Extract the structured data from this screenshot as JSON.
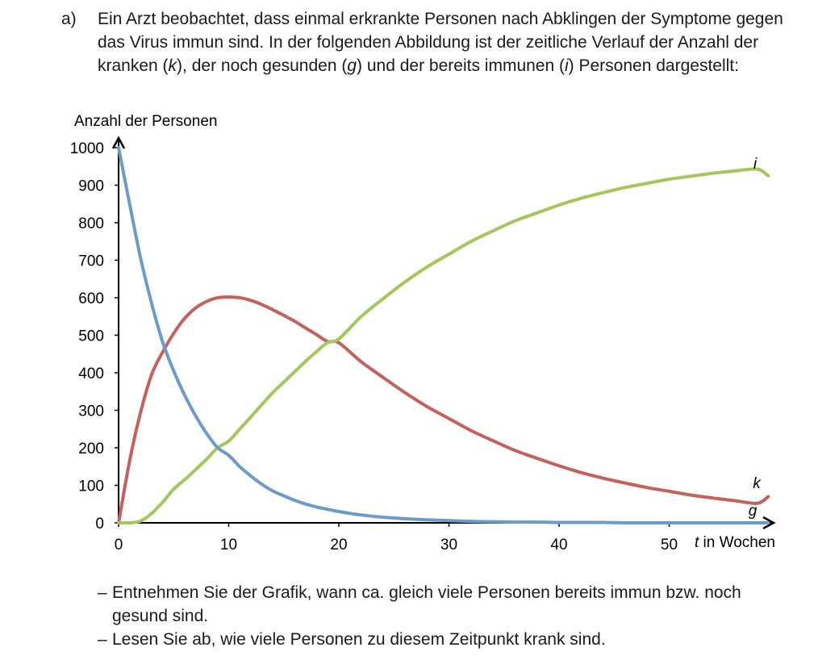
{
  "task": {
    "label": "a)",
    "intro_parts": [
      "Ein Arzt beobachtet, dass einmal erkrankte Personen nach Abklingen der Symptome gegen das Virus immun sind. In der folgenden Abbildung ist der zeitliche Verlauf der Anzahl der kranken (",
      "k",
      "), der noch gesunden (",
      "g",
      ") und der bereits immunen (",
      "i",
      ") Personen dargestellt:"
    ],
    "bullets": [
      "Entnehmen Sie der Grafik, wann ca. gleich viele Personen bereits immun bzw. noch gesund sind.",
      "Lesen Sie ab, wie viele Personen zu diesem Zeitpunkt krank sind."
    ]
  },
  "chart_data": {
    "type": "line",
    "title": "",
    "ylabel": "Anzahl der Personen",
    "xlabel_var": "t",
    "xlabel_rest": " in Wochen",
    "xlim": [
      0,
      60
    ],
    "ylim": [
      0,
      1000
    ],
    "xticks": [
      0,
      10,
      20,
      30,
      40,
      50
    ],
    "yticks": [
      0,
      100,
      200,
      300,
      400,
      500,
      600,
      700,
      800,
      900,
      1000
    ],
    "grid": false,
    "colors": {
      "g": "#6a9ccb",
      "k": "#c5605a",
      "i": "#a4c65a"
    },
    "x": [
      0,
      1,
      2,
      3,
      4,
      5,
      6,
      7,
      8,
      9,
      10,
      11,
      12,
      13,
      14,
      15,
      16,
      17,
      18,
      19,
      20,
      22,
      24,
      26,
      28,
      30,
      32,
      34,
      36,
      38,
      40,
      42,
      44,
      46,
      48,
      50,
      52,
      54,
      56,
      58,
      59
    ],
    "series": [
      {
        "name": "g",
        "values": [
          1000,
          850,
          705,
          585,
          482,
          405,
          340,
          285,
          238,
          200,
          180,
          150,
          125,
          103,
          85,
          72,
          60,
          50,
          42,
          36,
          30,
          21,
          15,
          11,
          8,
          6,
          4,
          3,
          2,
          2,
          1,
          1,
          1,
          0,
          0,
          0,
          0,
          0,
          0,
          0,
          0
        ]
      },
      {
        "name": "k",
        "values": [
          0,
          165,
          295,
          395,
          455,
          505,
          545,
          573,
          590,
          600,
          602,
          600,
          593,
          582,
          568,
          553,
          537,
          519,
          501,
          483,
          480,
          430,
          388,
          347,
          310,
          278,
          246,
          219,
          193,
          172,
          152,
          134,
          119,
          106,
          94,
          84,
          74,
          66,
          59,
          52,
          70
        ]
      },
      {
        "name": "i",
        "values": [
          0,
          0,
          5,
          25,
          55,
          90,
          115,
          142,
          170,
          200,
          218,
          250,
          282,
          315,
          347,
          375,
          403,
          431,
          457,
          481,
          490,
          549,
          597,
          642,
          682,
          716,
          750,
          778,
          805,
          826,
          847,
          865,
          880,
          894,
          905,
          916,
          924,
          932,
          938,
          943,
          925
        ]
      }
    ]
  }
}
